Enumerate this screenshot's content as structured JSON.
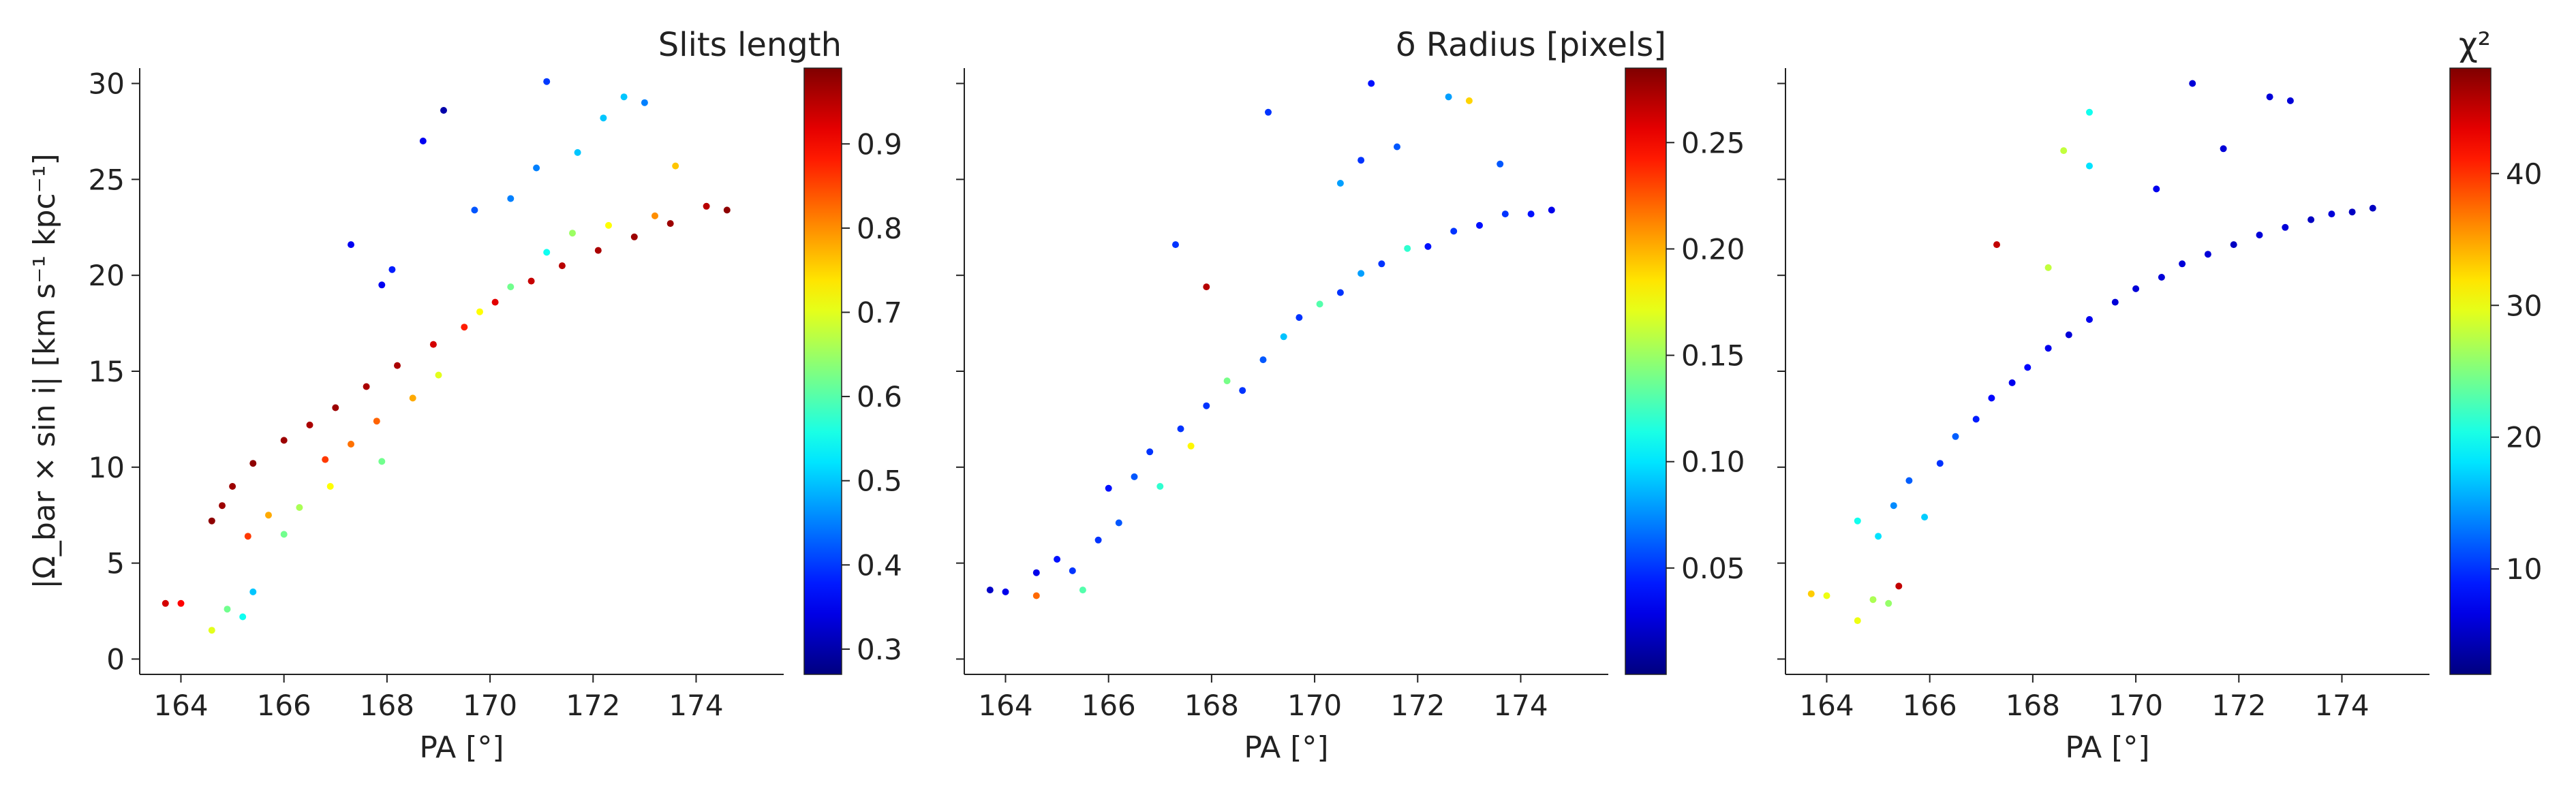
{
  "figure": {
    "panels": [
      {
        "xlabel": "PA [°]",
        "ylabel": "|Ω_bar × sin i|   [km s⁻¹ kpc⁻¹]",
        "colorbar": {
          "label": "Slits length",
          "ticks": [
            "0.3",
            "0.4",
            "0.5",
            "0.6",
            "0.7",
            "0.8",
            "0.9"
          ]
        },
        "color_variable": "slit_length"
      },
      {
        "xlabel": "PA [°]",
        "ylabel": "",
        "colorbar": {
          "label": "δ Radius [pixels]",
          "ticks": [
            "0.05",
            "0.10",
            "0.15",
            "0.20",
            "0.25"
          ]
        },
        "color_variable": "delta_radius"
      },
      {
        "xlabel": "PA [°]",
        "ylabel": "",
        "colorbar": {
          "label": "χ²",
          "ticks": [
            "10",
            "20",
            "30",
            "40"
          ]
        },
        "color_variable": "chi2"
      }
    ],
    "x_ticks": [
      "164",
      "166",
      "168",
      "170",
      "172",
      "174"
    ],
    "y_ticks": [
      "0",
      "5",
      "10",
      "15",
      "20",
      "25",
      "30"
    ]
  },
  "chart_data": [
    {
      "type": "scatter",
      "title": "",
      "xlabel": "PA [°]",
      "ylabel": "|Ω_bar × sin i|   [km s⁻¹ kpc⁻¹]",
      "xlim": [
        163.2,
        175.7
      ],
      "ylim": [
        -0.8,
        30.8
      ],
      "grid": false,
      "colorbar": {
        "label": "Slits length",
        "range": [
          0.27,
          0.99
        ],
        "colormap": "jet"
      },
      "points": [
        {
          "x": 163.7,
          "y": 2.9,
          "c": 0.93
        },
        {
          "x": 164.0,
          "y": 2.9,
          "c": 0.9
        },
        {
          "x": 164.6,
          "y": 1.5,
          "c": 0.7
        },
        {
          "x": 164.9,
          "y": 2.6,
          "c": 0.62
        },
        {
          "x": 165.2,
          "y": 2.2,
          "c": 0.55
        },
        {
          "x": 165.4,
          "y": 3.5,
          "c": 0.5
        },
        {
          "x": 164.6,
          "y": 7.2,
          "c": 0.98
        },
        {
          "x": 164.8,
          "y": 8.0,
          "c": 0.97
        },
        {
          "x": 165.0,
          "y": 9.0,
          "c": 0.97
        },
        {
          "x": 165.4,
          "y": 10.2,
          "c": 0.98
        },
        {
          "x": 165.3,
          "y": 6.4,
          "c": 0.86
        },
        {
          "x": 165.7,
          "y": 7.5,
          "c": 0.78
        },
        {
          "x": 166.0,
          "y": 6.5,
          "c": 0.62
        },
        {
          "x": 166.3,
          "y": 7.9,
          "c": 0.66
        },
        {
          "x": 166.0,
          "y": 11.4,
          "c": 0.97
        },
        {
          "x": 166.5,
          "y": 12.2,
          "c": 0.96
        },
        {
          "x": 166.8,
          "y": 10.4,
          "c": 0.86
        },
        {
          "x": 166.9,
          "y": 9.0,
          "c": 0.72
        },
        {
          "x": 167.0,
          "y": 13.1,
          "c": 0.97
        },
        {
          "x": 167.3,
          "y": 11.2,
          "c": 0.82
        },
        {
          "x": 167.6,
          "y": 14.2,
          "c": 0.96
        },
        {
          "x": 167.8,
          "y": 12.4,
          "c": 0.83
        },
        {
          "x": 167.9,
          "y": 10.3,
          "c": 0.62
        },
        {
          "x": 168.2,
          "y": 15.3,
          "c": 0.96
        },
        {
          "x": 168.5,
          "y": 13.6,
          "c": 0.78
        },
        {
          "x": 168.9,
          "y": 16.4,
          "c": 0.93
        },
        {
          "x": 169.0,
          "y": 14.8,
          "c": 0.7
        },
        {
          "x": 169.5,
          "y": 17.3,
          "c": 0.88
        },
        {
          "x": 169.8,
          "y": 18.1,
          "c": 0.72
        },
        {
          "x": 170.1,
          "y": 18.6,
          "c": 0.92
        },
        {
          "x": 170.4,
          "y": 19.4,
          "c": 0.62
        },
        {
          "x": 170.8,
          "y": 19.7,
          "c": 0.94
        },
        {
          "x": 171.1,
          "y": 21.2,
          "c": 0.55
        },
        {
          "x": 171.4,
          "y": 20.5,
          "c": 0.95
        },
        {
          "x": 171.6,
          "y": 22.2,
          "c": 0.65
        },
        {
          "x": 172.1,
          "y": 21.3,
          "c": 0.96
        },
        {
          "x": 172.3,
          "y": 22.6,
          "c": 0.72
        },
        {
          "x": 172.8,
          "y": 22.0,
          "c": 0.97
        },
        {
          "x": 173.2,
          "y": 23.1,
          "c": 0.8
        },
        {
          "x": 173.5,
          "y": 22.7,
          "c": 0.97
        },
        {
          "x": 174.2,
          "y": 23.6,
          "c": 0.95
        },
        {
          "x": 174.6,
          "y": 23.4,
          "c": 0.98
        },
        {
          "x": 167.3,
          "y": 21.6,
          "c": 0.35
        },
        {
          "x": 168.7,
          "y": 27.0,
          "c": 0.35
        },
        {
          "x": 169.1,
          "y": 28.6,
          "c": 0.3
        },
        {
          "x": 171.1,
          "y": 30.1,
          "c": 0.4
        },
        {
          "x": 172.6,
          "y": 29.3,
          "c": 0.5
        },
        {
          "x": 173.0,
          "y": 29.0,
          "c": 0.45
        },
        {
          "x": 172.2,
          "y": 28.2,
          "c": 0.5
        },
        {
          "x": 169.7,
          "y": 23.4,
          "c": 0.42
        },
        {
          "x": 170.4,
          "y": 24.0,
          "c": 0.45
        },
        {
          "x": 170.9,
          "y": 25.6,
          "c": 0.45
        },
        {
          "x": 171.7,
          "y": 26.4,
          "c": 0.5
        },
        {
          "x": 173.6,
          "y": 25.7,
          "c": 0.76
        },
        {
          "x": 168.1,
          "y": 20.3,
          "c": 0.38
        },
        {
          "x": 167.9,
          "y": 19.5,
          "c": 0.35
        }
      ]
    },
    {
      "type": "scatter",
      "title": "",
      "xlabel": "PA [°]",
      "ylabel": "",
      "xlim": [
        163.2,
        175.7
      ],
      "ylim": [
        -0.8,
        30.8
      ],
      "grid": false,
      "colorbar": {
        "label": "δ Radius [pixels]",
        "range": [
          0.0,
          0.285
        ],
        "colormap": "jet"
      },
      "points": [
        {
          "x": 163.7,
          "y": 3.6,
          "c": 0.02
        },
        {
          "x": 164.0,
          "y": 3.5,
          "c": 0.03
        },
        {
          "x": 164.6,
          "y": 3.3,
          "c": 0.22
        },
        {
          "x": 164.6,
          "y": 4.5,
          "c": 0.03
        },
        {
          "x": 165.0,
          "y": 5.2,
          "c": 0.04
        },
        {
          "x": 165.3,
          "y": 4.6,
          "c": 0.05
        },
        {
          "x": 165.5,
          "y": 3.6,
          "c": 0.13
        },
        {
          "x": 165.8,
          "y": 6.2,
          "c": 0.05
        },
        {
          "x": 166.2,
          "y": 7.1,
          "c": 0.06
        },
        {
          "x": 166.0,
          "y": 8.9,
          "c": 0.04
        },
        {
          "x": 166.5,
          "y": 9.5,
          "c": 0.06
        },
        {
          "x": 166.8,
          "y": 10.8,
          "c": 0.05
        },
        {
          "x": 167.0,
          "y": 9.0,
          "c": 0.12
        },
        {
          "x": 167.4,
          "y": 12.0,
          "c": 0.05
        },
        {
          "x": 167.6,
          "y": 11.1,
          "c": 0.18
        },
        {
          "x": 167.9,
          "y": 13.2,
          "c": 0.05
        },
        {
          "x": 168.3,
          "y": 14.5,
          "c": 0.14
        },
        {
          "x": 168.6,
          "y": 14.0,
          "c": 0.05
        },
        {
          "x": 169.0,
          "y": 15.6,
          "c": 0.06
        },
        {
          "x": 169.4,
          "y": 16.8,
          "c": 0.09
        },
        {
          "x": 169.7,
          "y": 17.8,
          "c": 0.05
        },
        {
          "x": 170.1,
          "y": 18.5,
          "c": 0.13
        },
        {
          "x": 170.5,
          "y": 19.1,
          "c": 0.05
        },
        {
          "x": 170.9,
          "y": 20.1,
          "c": 0.08
        },
        {
          "x": 171.3,
          "y": 20.6,
          "c": 0.05
        },
        {
          "x": 171.8,
          "y": 21.4,
          "c": 0.12
        },
        {
          "x": 172.2,
          "y": 21.5,
          "c": 0.04
        },
        {
          "x": 172.7,
          "y": 22.3,
          "c": 0.05
        },
        {
          "x": 173.2,
          "y": 22.6,
          "c": 0.04
        },
        {
          "x": 173.7,
          "y": 23.2,
          "c": 0.05
        },
        {
          "x": 174.2,
          "y": 23.2,
          "c": 0.04
        },
        {
          "x": 174.6,
          "y": 23.4,
          "c": 0.03
        },
        {
          "x": 167.9,
          "y": 19.4,
          "c": 0.27
        },
        {
          "x": 167.3,
          "y": 21.6,
          "c": 0.05
        },
        {
          "x": 169.1,
          "y": 28.5,
          "c": 0.05
        },
        {
          "x": 171.1,
          "y": 30.0,
          "c": 0.04
        },
        {
          "x": 172.6,
          "y": 29.3,
          "c": 0.08
        },
        {
          "x": 173.0,
          "y": 29.1,
          "c": 0.19
        },
        {
          "x": 170.9,
          "y": 26.0,
          "c": 0.05
        },
        {
          "x": 171.6,
          "y": 26.7,
          "c": 0.06
        },
        {
          "x": 170.5,
          "y": 24.8,
          "c": 0.08
        },
        {
          "x": 173.6,
          "y": 25.8,
          "c": 0.06
        }
      ]
    },
    {
      "type": "scatter",
      "title": "",
      "xlabel": "PA [°]",
      "ylabel": "",
      "xlim": [
        163.2,
        175.7
      ],
      "ylim": [
        -0.8,
        30.8
      ],
      "grid": false,
      "colorbar": {
        "label": "χ²",
        "range": [
          2,
          48
        ],
        "colormap": "jet"
      },
      "points": [
        {
          "x": 163.7,
          "y": 3.4,
          "c": 33
        },
        {
          "x": 164.0,
          "y": 3.3,
          "c": 30
        },
        {
          "x": 164.6,
          "y": 2.0,
          "c": 30
        },
        {
          "x": 164.9,
          "y": 3.1,
          "c": 27
        },
        {
          "x": 165.2,
          "y": 2.9,
          "c": 26
        },
        {
          "x": 165.4,
          "y": 3.8,
          "c": 45
        },
        {
          "x": 164.6,
          "y": 7.2,
          "c": 20
        },
        {
          "x": 165.0,
          "y": 6.4,
          "c": 18
        },
        {
          "x": 165.3,
          "y": 8.0,
          "c": 14
        },
        {
          "x": 165.6,
          "y": 9.3,
          "c": 12
        },
        {
          "x": 165.9,
          "y": 7.4,
          "c": 17
        },
        {
          "x": 166.2,
          "y": 10.2,
          "c": 10
        },
        {
          "x": 166.5,
          "y": 11.6,
          "c": 12
        },
        {
          "x": 166.9,
          "y": 12.5,
          "c": 9
        },
        {
          "x": 167.2,
          "y": 13.6,
          "c": 8
        },
        {
          "x": 167.6,
          "y": 14.4,
          "c": 7
        },
        {
          "x": 167.9,
          "y": 15.2,
          "c": 8
        },
        {
          "x": 168.3,
          "y": 16.2,
          "c": 7
        },
        {
          "x": 168.7,
          "y": 16.9,
          "c": 6
        },
        {
          "x": 169.1,
          "y": 17.7,
          "c": 7
        },
        {
          "x": 169.6,
          "y": 18.6,
          "c": 6
        },
        {
          "x": 170.0,
          "y": 19.3,
          "c": 6
        },
        {
          "x": 170.5,
          "y": 19.9,
          "c": 6
        },
        {
          "x": 170.9,
          "y": 20.6,
          "c": 6
        },
        {
          "x": 171.4,
          "y": 21.1,
          "c": 6
        },
        {
          "x": 171.9,
          "y": 21.6,
          "c": 5
        },
        {
          "x": 172.4,
          "y": 22.1,
          "c": 6
        },
        {
          "x": 172.9,
          "y": 22.5,
          "c": 6
        },
        {
          "x": 173.4,
          "y": 22.9,
          "c": 5
        },
        {
          "x": 173.8,
          "y": 23.2,
          "c": 6
        },
        {
          "x": 174.2,
          "y": 23.3,
          "c": 5
        },
        {
          "x": 174.6,
          "y": 23.5,
          "c": 5
        },
        {
          "x": 167.3,
          "y": 21.6,
          "c": 45
        },
        {
          "x": 168.6,
          "y": 26.5,
          "c": 28
        },
        {
          "x": 169.1,
          "y": 28.5,
          "c": 20
        },
        {
          "x": 171.1,
          "y": 30.0,
          "c": 6
        },
        {
          "x": 172.6,
          "y": 29.3,
          "c": 6
        },
        {
          "x": 173.0,
          "y": 29.1,
          "c": 6
        },
        {
          "x": 169.1,
          "y": 25.7,
          "c": 18
        },
        {
          "x": 170.4,
          "y": 24.5,
          "c": 7
        },
        {
          "x": 171.7,
          "y": 26.6,
          "c": 6
        },
        {
          "x": 168.3,
          "y": 20.4,
          "c": 28
        }
      ]
    }
  ]
}
